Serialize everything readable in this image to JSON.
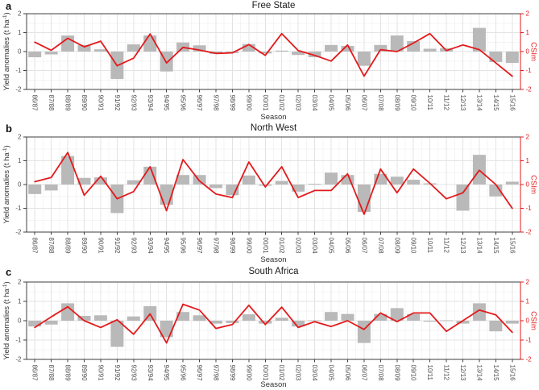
{
  "figure": {
    "panels": [
      {
        "letter": "a",
        "title": "Free State"
      },
      {
        "letter": "b",
        "title": "North West"
      },
      {
        "letter": "c",
        "title": "South Africa"
      }
    ]
  },
  "axes": {
    "xlabel": "Season",
    "ylabel_left_main": "Yield anomalies (t ha",
    "ylabel_left_sup": "-1",
    "ylabel_left_end": ")",
    "ylabel_right": "CSIm",
    "yticks": [
      2,
      1,
      0,
      -1,
      -2
    ],
    "ylim": [
      -2,
      2
    ]
  },
  "colors": {
    "bar": "#b9b9b9",
    "line": "#e31a1c",
    "right_axis": "#e31a1c",
    "grid_major": "#e3e3e3",
    "grid_minor": "#f4f4f4",
    "axis": "#3f3f3f",
    "tick_text": "#4d4d4d",
    "title_text": "#1a1a1a"
  },
  "chart_data": [
    {
      "type": "bar+line",
      "panel_label": "a",
      "title": "Free State",
      "xlabel": "Season",
      "ylabel": "Yield anomalies (t ha-1)",
      "ylabel_right": "CSIm",
      "ylim": [
        -2,
        2
      ],
      "grid": true,
      "legend": "none",
      "categories": [
        "86/87",
        "87/88",
        "88/89",
        "89/90",
        "90/91",
        "91/92",
        "92/93",
        "93/94",
        "94/95",
        "95/96",
        "96/97",
        "97/98",
        "98/99",
        "99/00",
        "00/01",
        "01/02",
        "02/03",
        "03/04",
        "04/05",
        "05/06",
        "06/07",
        "07/08",
        "08/09",
        "09/10",
        "10/11",
        "11/12",
        "12/13",
        "13/14",
        "14/15",
        "15/16"
      ],
      "series": [
        {
          "name": "Yield anomalies",
          "type": "bar",
          "axis": "left",
          "values": [
            -0.3,
            -0.15,
            0.85,
            0.35,
            0.12,
            -1.45,
            0.38,
            0.85,
            -1.05,
            0.48,
            0.33,
            -0.12,
            -0.08,
            0.4,
            -0.1,
            0.05,
            -0.18,
            -0.3,
            0.35,
            0.3,
            -0.75,
            0.35,
            0.85,
            0.55,
            0.15,
            0.18,
            0.0,
            1.25,
            -0.55,
            -0.6
          ]
        },
        {
          "name": "CSIm",
          "type": "line",
          "axis": "right",
          "values": [
            0.5,
            0.07,
            0.7,
            0.25,
            0.55,
            -0.75,
            -0.35,
            0.93,
            -0.6,
            0.22,
            0.08,
            -0.1,
            -0.07,
            0.37,
            -0.2,
            0.95,
            0.05,
            -0.2,
            -0.5,
            0.35,
            -1.3,
            0.1,
            0.0,
            0.45,
            0.95,
            0.05,
            0.35,
            0.1,
            -0.6,
            -1.3
          ]
        }
      ]
    },
    {
      "type": "bar+line",
      "panel_label": "b",
      "title": "North West",
      "xlabel": "Season",
      "ylabel": "Yield anomalies (t ha-1)",
      "ylabel_right": "CSIm",
      "ylim": [
        -2,
        2
      ],
      "grid": true,
      "legend": "none",
      "categories": [
        "86/87",
        "87/88",
        "88/89",
        "89/90",
        "90/91",
        "91/92",
        "92/93",
        "93/94",
        "94/95",
        "95/96",
        "96/97",
        "97/98",
        "98/99",
        "99/00",
        "00/01",
        "01/02",
        "02/03",
        "03/04",
        "04/05",
        "05/06",
        "06/07",
        "07/08",
        "08/09",
        "09/10",
        "10/11",
        "11/12",
        "12/13",
        "13/14",
        "14/15",
        "15/16"
      ],
      "series": [
        {
          "name": "Yield anomalies",
          "type": "bar",
          "axis": "left",
          "values": [
            -0.4,
            -0.25,
            1.2,
            0.28,
            0.3,
            -1.2,
            0.18,
            0.75,
            -0.85,
            0.4,
            0.4,
            -0.15,
            -0.45,
            0.38,
            -0.05,
            0.15,
            -0.3,
            0.03,
            0.5,
            0.4,
            -1.15,
            0.45,
            0.33,
            0.2,
            0.05,
            0.0,
            -1.1,
            1.25,
            -0.5,
            0.12
          ]
        },
        {
          "name": "CSIm",
          "type": "line",
          "axis": "right",
          "values": [
            0.12,
            0.3,
            1.35,
            -0.45,
            0.35,
            -0.6,
            -0.3,
            0.75,
            -1.1,
            1.05,
            0.15,
            -0.4,
            -0.55,
            0.95,
            -0.1,
            0.75,
            -0.55,
            -0.25,
            -0.25,
            0.45,
            -1.25,
            0.65,
            -0.35,
            0.65,
            0.05,
            -0.6,
            -0.35,
            0.6,
            0.0,
            -1.0
          ]
        }
      ]
    },
    {
      "type": "bar+line",
      "panel_label": "c",
      "title": "South Africa",
      "xlabel": "Season",
      "ylabel": "Yield anomalies (t ha-1)",
      "ylabel_right": "CSIm",
      "ylim": [
        -2,
        2
      ],
      "grid": true,
      "legend": "none",
      "categories": [
        "86/87",
        "87/88",
        "88/89",
        "89/90",
        "90/91",
        "91/92",
        "92/93",
        "93/94",
        "94/95",
        "95/96",
        "96/97",
        "97/98",
        "98/99",
        "99/00",
        "00/01",
        "01/02",
        "02/03",
        "03/04",
        "04/05",
        "05/06",
        "06/07",
        "07/08",
        "08/09",
        "09/10",
        "10/11",
        "11/12",
        "12/13",
        "13/14",
        "14/15",
        "15/16"
      ],
      "series": [
        {
          "name": "Yield anomalies",
          "type": "bar",
          "axis": "left",
          "values": [
            -0.3,
            -0.2,
            0.9,
            0.25,
            0.28,
            -1.35,
            0.22,
            0.75,
            -0.85,
            0.45,
            0.28,
            -0.15,
            -0.12,
            0.33,
            -0.15,
            0.15,
            -0.3,
            0.02,
            0.45,
            0.35,
            -1.15,
            0.35,
            0.65,
            0.35,
            -0.05,
            0.02,
            -0.15,
            0.9,
            -0.55,
            -0.15
          ]
        },
        {
          "name": "CSIm",
          "type": "line",
          "axis": "right",
          "values": [
            -0.35,
            0.2,
            0.72,
            0.0,
            -0.35,
            0.05,
            -0.7,
            0.35,
            -1.15,
            0.85,
            0.55,
            -0.4,
            -0.2,
            0.8,
            -0.2,
            0.7,
            -0.35,
            -0.05,
            -0.3,
            0.0,
            -0.45,
            0.4,
            -0.05,
            0.4,
            0.4,
            -0.55,
            0.0,
            0.55,
            0.3,
            -0.6
          ]
        }
      ]
    }
  ]
}
